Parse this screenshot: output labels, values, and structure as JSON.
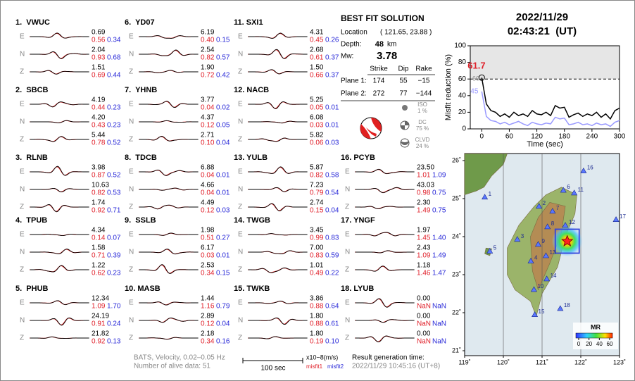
{
  "stations": [
    {
      "title": "1.  VWUC",
      "components": [
        {
          "comp": "E",
          "amp": "0.69",
          "misfit1": "0.56",
          "misfit2": "0.34"
        },
        {
          "comp": "N",
          "amp": "2.04",
          "misfit1": "0.93",
          "misfit2": "0.68"
        },
        {
          "comp": "Z",
          "amp": "1.51",
          "misfit1": "0.69",
          "misfit2": "0.44"
        }
      ]
    },
    {
      "title": "2.  SBCB",
      "components": [
        {
          "comp": "E",
          "amp": "4.19",
          "misfit1": "0.44",
          "misfit2": "0.23"
        },
        {
          "comp": "N",
          "amp": "4.20",
          "misfit1": "0.43",
          "misfit2": "0.23"
        },
        {
          "comp": "Z",
          "amp": "5.44",
          "misfit1": "0.78",
          "misfit2": "0.52"
        }
      ]
    },
    {
      "title": "3.  RLNB",
      "components": [
        {
          "comp": "E",
          "amp": "3.98",
          "misfit1": "0.87",
          "misfit2": "0.52"
        },
        {
          "comp": "N",
          "amp": "10.63",
          "misfit1": "0.82",
          "misfit2": "0.53"
        },
        {
          "comp": "Z",
          "amp": "1.74",
          "misfit1": "0.92",
          "misfit2": "0.71"
        }
      ]
    },
    {
      "title": "4.  TPUB",
      "components": [
        {
          "comp": "E",
          "amp": "4.34",
          "misfit1": "0.14",
          "misfit2": "0.07"
        },
        {
          "comp": "N",
          "amp": "1.58",
          "misfit1": "0.71",
          "misfit2": "0.39"
        },
        {
          "comp": "Z",
          "amp": "1.22",
          "misfit1": "0.62",
          "misfit2": "0.23"
        }
      ]
    },
    {
      "title": "5.  PHUB",
      "components": [
        {
          "comp": "E",
          "amp": "12.34",
          "misfit1": "1.09",
          "misfit2": "1.70"
        },
        {
          "comp": "N",
          "amp": "24.19",
          "misfit1": "0.91",
          "misfit2": "0.24"
        },
        {
          "comp": "Z",
          "amp": "21.82",
          "misfit1": "0.92",
          "misfit2": "0.13"
        }
      ]
    },
    {
      "title": "6.  YD07",
      "components": [
        {
          "comp": "E",
          "amp": "6.19",
          "misfit1": "0.40",
          "misfit2": "0.15"
        },
        {
          "comp": "N",
          "amp": "2.54",
          "misfit1": "0.82",
          "misfit2": "0.57"
        },
        {
          "comp": "Z",
          "amp": "1.90",
          "misfit1": "0.72",
          "misfit2": "0.42"
        }
      ]
    },
    {
      "title": "7.  YHNB",
      "components": [
        {
          "comp": "E",
          "amp": "3.77",
          "misfit1": "0.04",
          "misfit2": "0.02"
        },
        {
          "comp": "N",
          "amp": "4.37",
          "misfit1": "0.12",
          "misfit2": "0.05"
        },
        {
          "comp": "Z",
          "amp": "2.71",
          "misfit1": "0.10",
          "misfit2": "0.04"
        }
      ]
    },
    {
      "title": "8.  TDCB",
      "components": [
        {
          "comp": "E",
          "amp": "6.88",
          "misfit1": "0.04",
          "misfit2": "0.01"
        },
        {
          "comp": "N",
          "amp": "4.66",
          "misfit1": "0.04",
          "misfit2": "0.01"
        },
        {
          "comp": "Z",
          "amp": "4.49",
          "misfit1": "0.12",
          "misfit2": "0.03"
        }
      ]
    },
    {
      "title": "9.  SSLB",
      "components": [
        {
          "comp": "E",
          "amp": "1.98",
          "misfit1": "0.51",
          "misfit2": "0.27"
        },
        {
          "comp": "N",
          "amp": "6.17",
          "misfit1": "0.03",
          "misfit2": "0.01"
        },
        {
          "comp": "Z",
          "amp": "2.53",
          "misfit1": "0.34",
          "misfit2": "0.15"
        }
      ]
    },
    {
      "title": "10. MASB",
      "components": [
        {
          "comp": "E",
          "amp": "1.44",
          "misfit1": "1.16",
          "misfit2": "0.79"
        },
        {
          "comp": "N",
          "amp": "2.89",
          "misfit1": "0.12",
          "misfit2": "0.04"
        },
        {
          "comp": "Z",
          "amp": "2.18",
          "misfit1": "0.34",
          "misfit2": "0.16"
        }
      ]
    },
    {
      "title": "11. SXI1",
      "components": [
        {
          "comp": "E",
          "amp": "4.31",
          "misfit1": "0.45",
          "misfit2": "0.26"
        },
        {
          "comp": "N",
          "amp": "2.68",
          "misfit1": "0.61",
          "misfit2": "0.37"
        },
        {
          "comp": "Z",
          "amp": "1.50",
          "misfit1": "0.66",
          "misfit2": "0.37"
        }
      ]
    },
    {
      "title": "12. NACB",
      "components": [
        {
          "comp": "E",
          "amp": "5.25",
          "misfit1": "0.05",
          "misfit2": "0.01"
        },
        {
          "comp": "N",
          "amp": "6.08",
          "misfit1": "0.03",
          "misfit2": "0.01"
        },
        {
          "comp": "Z",
          "amp": "5.82",
          "misfit1": "0.06",
          "misfit2": "0.03"
        }
      ]
    },
    {
      "title": "13. YULB",
      "components": [
        {
          "comp": "E",
          "amp": "5.87",
          "misfit1": "0.82",
          "misfit2": "0.58"
        },
        {
          "comp": "N",
          "amp": "7.23",
          "misfit1": "0.79",
          "misfit2": "0.54"
        },
        {
          "comp": "Z",
          "amp": "2.74",
          "misfit1": "0.15",
          "misfit2": "0.04"
        }
      ]
    },
    {
      "title": "14. TWGB",
      "components": [
        {
          "comp": "E",
          "amp": "3.45",
          "misfit1": "0.99",
          "misfit2": "0.83"
        },
        {
          "comp": "N",
          "amp": "7.00",
          "misfit1": "0.83",
          "misfit2": "0.59"
        },
        {
          "comp": "Z",
          "amp": "1.01",
          "misfit1": "0.49",
          "misfit2": "0.22"
        }
      ]
    },
    {
      "title": "15. TWKB",
      "components": [
        {
          "comp": "E",
          "amp": "3.86",
          "misfit1": "0.88",
          "misfit2": "0.64"
        },
        {
          "comp": "N",
          "amp": "1.80",
          "misfit1": "0.88",
          "misfit2": "0.61"
        },
        {
          "comp": "Z",
          "amp": "1.80",
          "misfit1": "0.19",
          "misfit2": "0.10"
        }
      ]
    },
    {
      "title": "16. PCYB",
      "components": [
        {
          "comp": "E",
          "amp": "23.50",
          "misfit1": "1.01",
          "misfit2": "1.09"
        },
        {
          "comp": "N",
          "amp": "43.03",
          "misfit1": "0.98",
          "misfit2": "0.75"
        },
        {
          "comp": "Z",
          "amp": "2.30",
          "misfit1": "1.49",
          "misfit2": "0.75"
        }
      ]
    },
    {
      "title": "17. YNGF",
      "components": [
        {
          "comp": "E",
          "amp": "1.97",
          "misfit1": "1.45",
          "misfit2": "1.40"
        },
        {
          "comp": "N",
          "amp": "2.43",
          "misfit1": "1.09",
          "misfit2": "1.49"
        },
        {
          "comp": "Z",
          "amp": "1.18",
          "misfit1": "1.46",
          "misfit2": "1.47"
        }
      ]
    },
    {
      "title": "18. LYUB",
      "components": [
        {
          "comp": "E",
          "amp": "0.00",
          "misfit1": "NaN",
          "misfit2": "NaN"
        },
        {
          "comp": "N",
          "amp": "0.00",
          "misfit1": "NaN",
          "misfit2": "NaN"
        },
        {
          "comp": "Z",
          "amp": "0.00",
          "misfit1": "NaN",
          "misfit2": "NaN"
        }
      ]
    }
  ],
  "solution": {
    "title": "BEST FIT SOLUTION",
    "location_label": "Location",
    "location": "( 121.65, 23.88 )",
    "depth_label": "Depth:",
    "depth": "48",
    "depth_unit": "km",
    "mw_label": "Mw:",
    "mw": "3.78",
    "header": [
      "Strike",
      "Dip",
      "Rake"
    ],
    "rows": [
      {
        "label": "Plane 1:",
        "values": [
          "174",
          "55",
          "−15"
        ]
      },
      {
        "label": "Plane 2:",
        "values": [
          "272",
          "77",
          "−144"
        ]
      }
    ],
    "components": [
      {
        "name": "ISO",
        "value": "1 %"
      },
      {
        "name": "DC",
        "value": "75 %"
      },
      {
        "name": "CLVD",
        "value": "24 %"
      }
    ]
  },
  "event": {
    "date": "2022/11/29",
    "time": "02:43:21  (UT)"
  },
  "chart_data": {
    "type": "line",
    "xlabel": "Time (sec)",
    "ylabel": "Misfit reduction (%)",
    "x": [
      0,
      10,
      20,
      30,
      40,
      50,
      60,
      70,
      80,
      90,
      100,
      110,
      120,
      130,
      140,
      150,
      160,
      170,
      180,
      190,
      200,
      210,
      220,
      230,
      240,
      250,
      260,
      270,
      280,
      290,
      300
    ],
    "series": [
      {
        "color": "#000000",
        "values": [
          61.7,
          30,
          22,
          20,
          15,
          18,
          14,
          20,
          16,
          18,
          15,
          22,
          18,
          17,
          20,
          16,
          28,
          25,
          26,
          14,
          17,
          19,
          15,
          18,
          16,
          20,
          14,
          18,
          12,
          22,
          25
        ]
      },
      {
        "color": "#9999ff",
        "values": [
          45,
          15,
          10,
          9,
          6,
          8,
          5,
          7,
          9,
          6,
          4,
          8,
          6,
          5,
          7,
          6,
          14,
          12,
          13,
          5,
          6,
          8,
          5,
          6,
          4,
          7,
          5,
          6,
          3,
          8,
          10
        ]
      }
    ],
    "reference": 60,
    "xlim": [
      -25,
      300
    ],
    "ylim": [
      0,
      100
    ],
    "xticks": [
      0,
      60,
      120,
      180,
      240,
      300
    ],
    "yticks": [
      0,
      20,
      40,
      60,
      80,
      100
    ]
  },
  "map": {
    "xlim": [
      119,
      123
    ],
    "ylim": [
      21,
      26
    ],
    "xticks": [
      {
        "value": 119,
        "label": "119˚"
      },
      {
        "value": 120,
        "label": "120˚"
      },
      {
        "value": 121,
        "label": "121˚"
      },
      {
        "value": 122,
        "label": "122˚"
      },
      {
        "value": 123,
        "label": "123˚"
      }
    ],
    "yticks": [
      {
        "value": 21,
        "label": "21˚"
      },
      {
        "value": 22,
        "label": "22˚"
      },
      {
        "value": 23,
        "label": "23˚"
      },
      {
        "value": 24,
        "label": "24˚"
      },
      {
        "value": 25,
        "label": "25˚"
      },
      {
        "value": 26,
        "label": "26˚"
      }
    ],
    "stations": [
      {
        "label": "1",
        "lon": 119.52,
        "lat": 25.04
      },
      {
        "label": "2",
        "lon": 120.92,
        "lat": 24.8
      },
      {
        "label": "3",
        "lon": 120.36,
        "lat": 23.93
      },
      {
        "label": "4",
        "lon": 120.71,
        "lat": 23.36
      },
      {
        "label": "5",
        "lon": 119.65,
        "lat": 23.62
      },
      {
        "label": "6",
        "lon": 121.55,
        "lat": 25.22
      },
      {
        "label": "7",
        "lon": 121.27,
        "lat": 24.67
      },
      {
        "label": "8",
        "lon": 121.14,
        "lat": 24.26
      },
      {
        "label": "9",
        "lon": 120.9,
        "lat": 23.8
      },
      {
        "label": "10",
        "lon": 120.79,
        "lat": 22.61
      },
      {
        "label": "11",
        "lon": 121.83,
        "lat": 25.15
      },
      {
        "label": "12",
        "lon": 121.6,
        "lat": 24.3
      },
      {
        "label": "13",
        "lon": 121.1,
        "lat": 23.5
      },
      {
        "label": "14",
        "lon": 121.12,
        "lat": 22.89
      },
      {
        "label": "15",
        "lon": 120.81,
        "lat": 21.95
      },
      {
        "label": "16",
        "lon": 122.07,
        "lat": 25.73
      },
      {
        "label": "17",
        "lon": 122.91,
        "lat": 24.45
      },
      {
        "label": "18",
        "lon": 121.47,
        "lat": 22.11
      }
    ],
    "epicenter": {
      "lon": 121.65,
      "lat": 23.88
    },
    "colorbar": {
      "title": "MR",
      "ticks": [
        0,
        20,
        40,
        60
      ]
    }
  },
  "footer": {
    "line1": "BATS, Velocity, 0.02–0.05 Hz",
    "line2": "Number of alive data: 51",
    "scale": "100 sec",
    "units": "x10−8(m/s)",
    "misfit1": "misfit1",
    "misfit2": "misfit2",
    "result_label": "Result generation time:",
    "result_time": "2022/11/29 10:45:16 (UT+8)"
  }
}
